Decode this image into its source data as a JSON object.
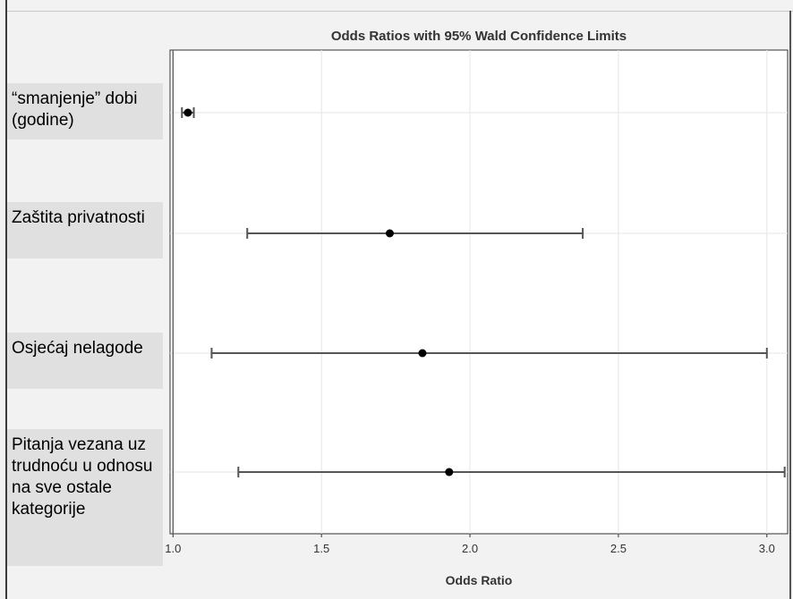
{
  "chart_data": {
    "type": "forest",
    "title": "Odds Ratios with 95% Wald Confidence Limits",
    "xlabel": "Odds Ratio",
    "xlim": [
      0.99,
      3.07
    ],
    "xticks": [
      "1.0",
      "1.5",
      "2.0",
      "2.5",
      "3.0"
    ],
    "xtick_values": [
      1.0,
      1.5,
      2.0,
      2.5,
      3.0
    ],
    "grid": true,
    "reference_line": 1.0,
    "categories": [
      "“smanjenje” dobi (godine)",
      "Zaštita privatnosti",
      "Osjećaj nelagode",
      "Pitanja vezana uz trudnoću u odnosu na sve ostale kategorije"
    ],
    "estimates": [
      1.05,
      1.73,
      1.84,
      1.93
    ],
    "lower": [
      1.03,
      1.25,
      1.13,
      1.22
    ],
    "upper": [
      1.07,
      2.38,
      3.0,
      3.06
    ]
  },
  "colors": {
    "frame_background": "#f2f2f2",
    "plot_background": "#ffffff",
    "label_box": "#e0e0e0",
    "whisker": "#555555",
    "point": "#000000",
    "grid": "#e6e6e6",
    "reference_line": "#666666"
  }
}
